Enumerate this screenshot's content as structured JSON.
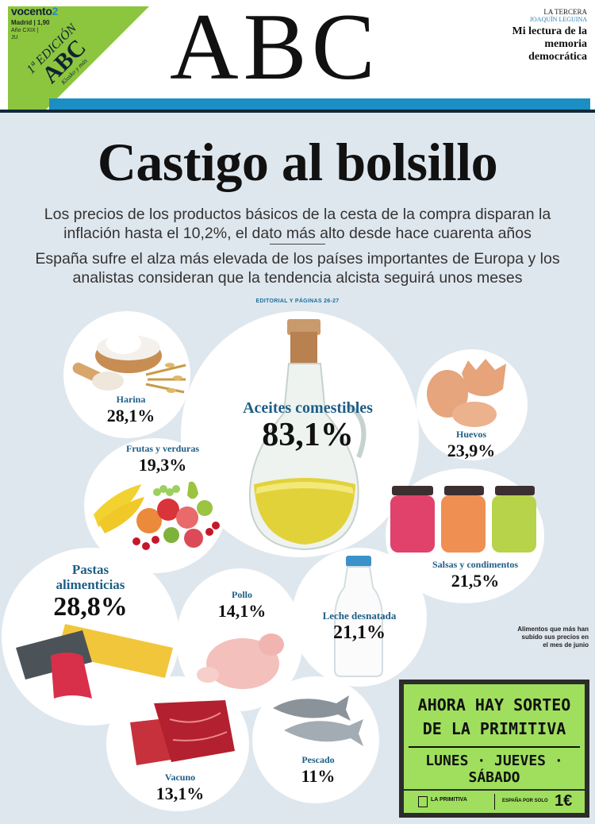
{
  "masthead": {
    "group_a": "vocento",
    "group_b": "2",
    "meta_line1": "Madrid | 1,90",
    "meta_line2": "Año CXIX | ",
    "date_fragment": "JU",
    "edition_number": "1ª EDICIÓN",
    "edition_logo": "ABC",
    "edition_sub": "Kiosko y más",
    "logo": "ABC",
    "kicker_section": "LA TERCERA",
    "kicker_author": "JOAQUÍN LEGUINA",
    "kicker_title": "Mi lectura de la memoria democrática"
  },
  "front": {
    "headline": "Castigo al bolsillo",
    "deck1": "Los precios de los productos básicos de la cesta de la compra disparan la inflación hasta el 10,2%, el dato más alto desde hace cuarenta años",
    "deck2": "España sufre el alza más elevada de los países importantes de Europa y los analistas consideran que la tendencia alcista seguirá unos meses",
    "editorial_ref": "EDITORIAL Y PÁGINAS 26-27",
    "note": "Alimentos que más han subido sus precios en el mes de junio"
  },
  "items": [
    {
      "name": "Harina",
      "pct": "28,1%"
    },
    {
      "name": "Aceites comestibles",
      "pct": "83,1%"
    },
    {
      "name": "Huevos",
      "pct": "23,9%"
    },
    {
      "name": "Frutas y verduras",
      "pct": "19,3%"
    },
    {
      "name": "Salsas y condimentos",
      "pct": "21,5%"
    },
    {
      "name": "Pastas alimenticias",
      "pct": "28,8%"
    },
    {
      "name": "Pollo",
      "pct": "14,1%"
    },
    {
      "name": "Leche desnatada",
      "pct": "21,1%"
    },
    {
      "name": "Pescado",
      "pct": "11%"
    },
    {
      "name": "Vacuno",
      "pct": "13,1%"
    }
  ],
  "ad": {
    "line1": "AHORA HAY SORTEO",
    "line2": "DE LA PRIMITIVA",
    "line3": "LUNES · JUEVES · SÁBADO",
    "brand": "LA PRIMITIVA",
    "cash_label": "ESPAÑA POR SOLO",
    "price": "1€"
  }
}
